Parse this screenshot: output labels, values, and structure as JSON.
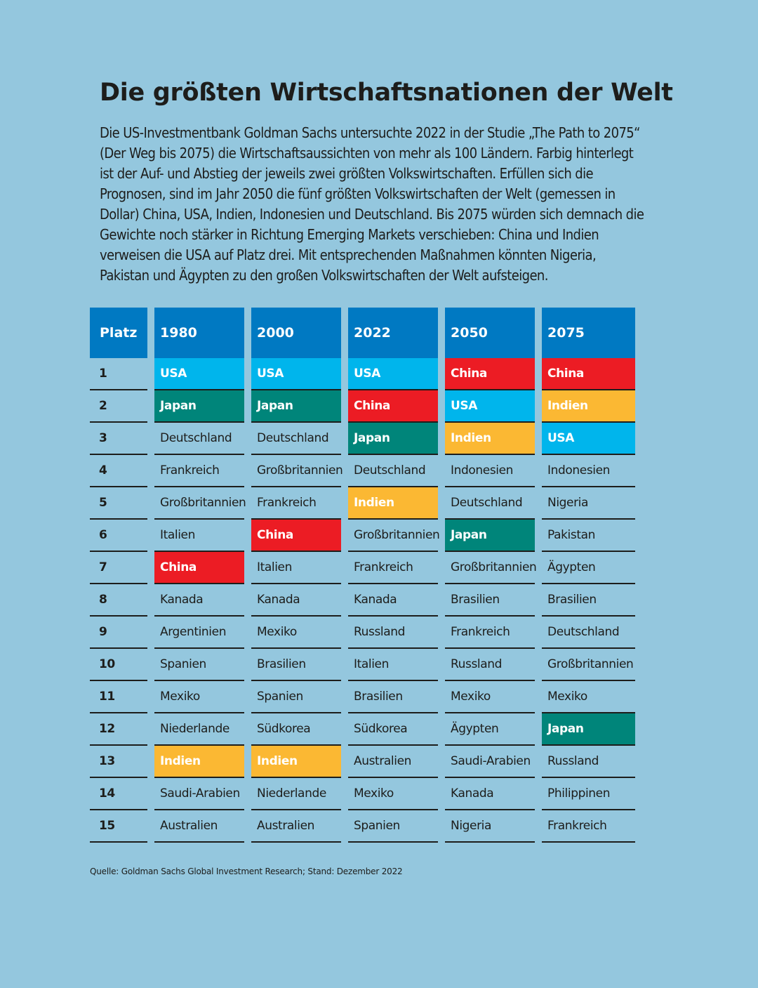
{
  "title": "Die größten Wirtschaftsnationen der Welt",
  "intro": "Die US-Investmentbank Goldman Sachs untersuchte 2022 in der Studie „The Path to 2075“ (Der Weg bis 2075) die Wirtschaftsaussichten von mehr als 100 Ländern. Farbig hinterlegt ist der Auf- und Abstieg der jeweils zwei größten Volkswirtschaften. Erfüllen sich die Prognosen, sind im Jahr 2050 die fünf größten Volkswirtschaften der Welt (gemessen in Dollar) China, USA, Indien, Indonesien und Deutschland. Bis 2075 würden sich demnach die Gewichte noch stärker in Richtung Emerging Markets verschieben: China und Indien verweisen die USA auf Platz drei. Mit entsprechenden Maßnahmen könnten Nigeria, Pakistan und Ägypten zu den großen Volkswirtschaften der Welt aufsteigen.",
  "table": {
    "rank_header": "Platz",
    "ranks": [
      "1",
      "2",
      "3",
      "4",
      "5",
      "6",
      "7",
      "8",
      "9",
      "10",
      "11",
      "12",
      "13",
      "14",
      "15"
    ],
    "columns": [
      {
        "year": "1980",
        "countries": [
          "USA",
          "Japan",
          "Deutschland",
          "Frankreich",
          "Großbritannien",
          "Italien",
          "China",
          "Kanada",
          "Argentinien",
          "Spanien",
          "Mexiko",
          "Niederlande",
          "Indien",
          "Saudi-Arabien",
          "Australien"
        ]
      },
      {
        "year": "2000",
        "countries": [
          "USA",
          "Japan",
          "Deutschland",
          "Großbritannien",
          "Frankreich",
          "China",
          "Italien",
          "Kanada",
          "Mexiko",
          "Brasilien",
          "Spanien",
          "Südkorea",
          "Indien",
          "Niederlande",
          "Australien"
        ]
      },
      {
        "year": "2022",
        "countries": [
          "USA",
          "China",
          "Japan",
          "Deutschland",
          "Indien",
          "Großbritannien",
          "Frankreich",
          "Kanada",
          "Russland",
          "Italien",
          "Brasilien",
          "Südkorea",
          "Australien",
          "Mexiko",
          "Spanien"
        ]
      },
      {
        "year": "2050",
        "countries": [
          "China",
          "USA",
          "Indien",
          "Indonesien",
          "Deutschland",
          "Japan",
          "Großbritannien",
          "Brasilien",
          "Frankreich",
          "Russland",
          "Mexiko",
          "Ägypten",
          "Saudi-Arabien",
          "Kanada",
          "Nigeria"
        ]
      },
      {
        "year": "2075",
        "countries": [
          "China",
          "Indien",
          "USA",
          "Indonesien",
          "Nigeria",
          "Pakistan",
          "Ägypten",
          "Brasilien",
          "Deutschland",
          "Großbritannien",
          "Mexiko",
          "Japan",
          "Russland",
          "Philippinen",
          "Frankreich"
        ]
      }
    ]
  },
  "colors": {
    "background": "#94c7de",
    "header": "#0079c2",
    "highlight": {
      "USA": "#00b5ec",
      "Japan": "#00857a",
      "China": "#ec1c24",
      "Indien": "#fbb833"
    }
  },
  "source": "Quelle: Goldman Sachs Global Investment Research; Stand: Dezember 2022"
}
